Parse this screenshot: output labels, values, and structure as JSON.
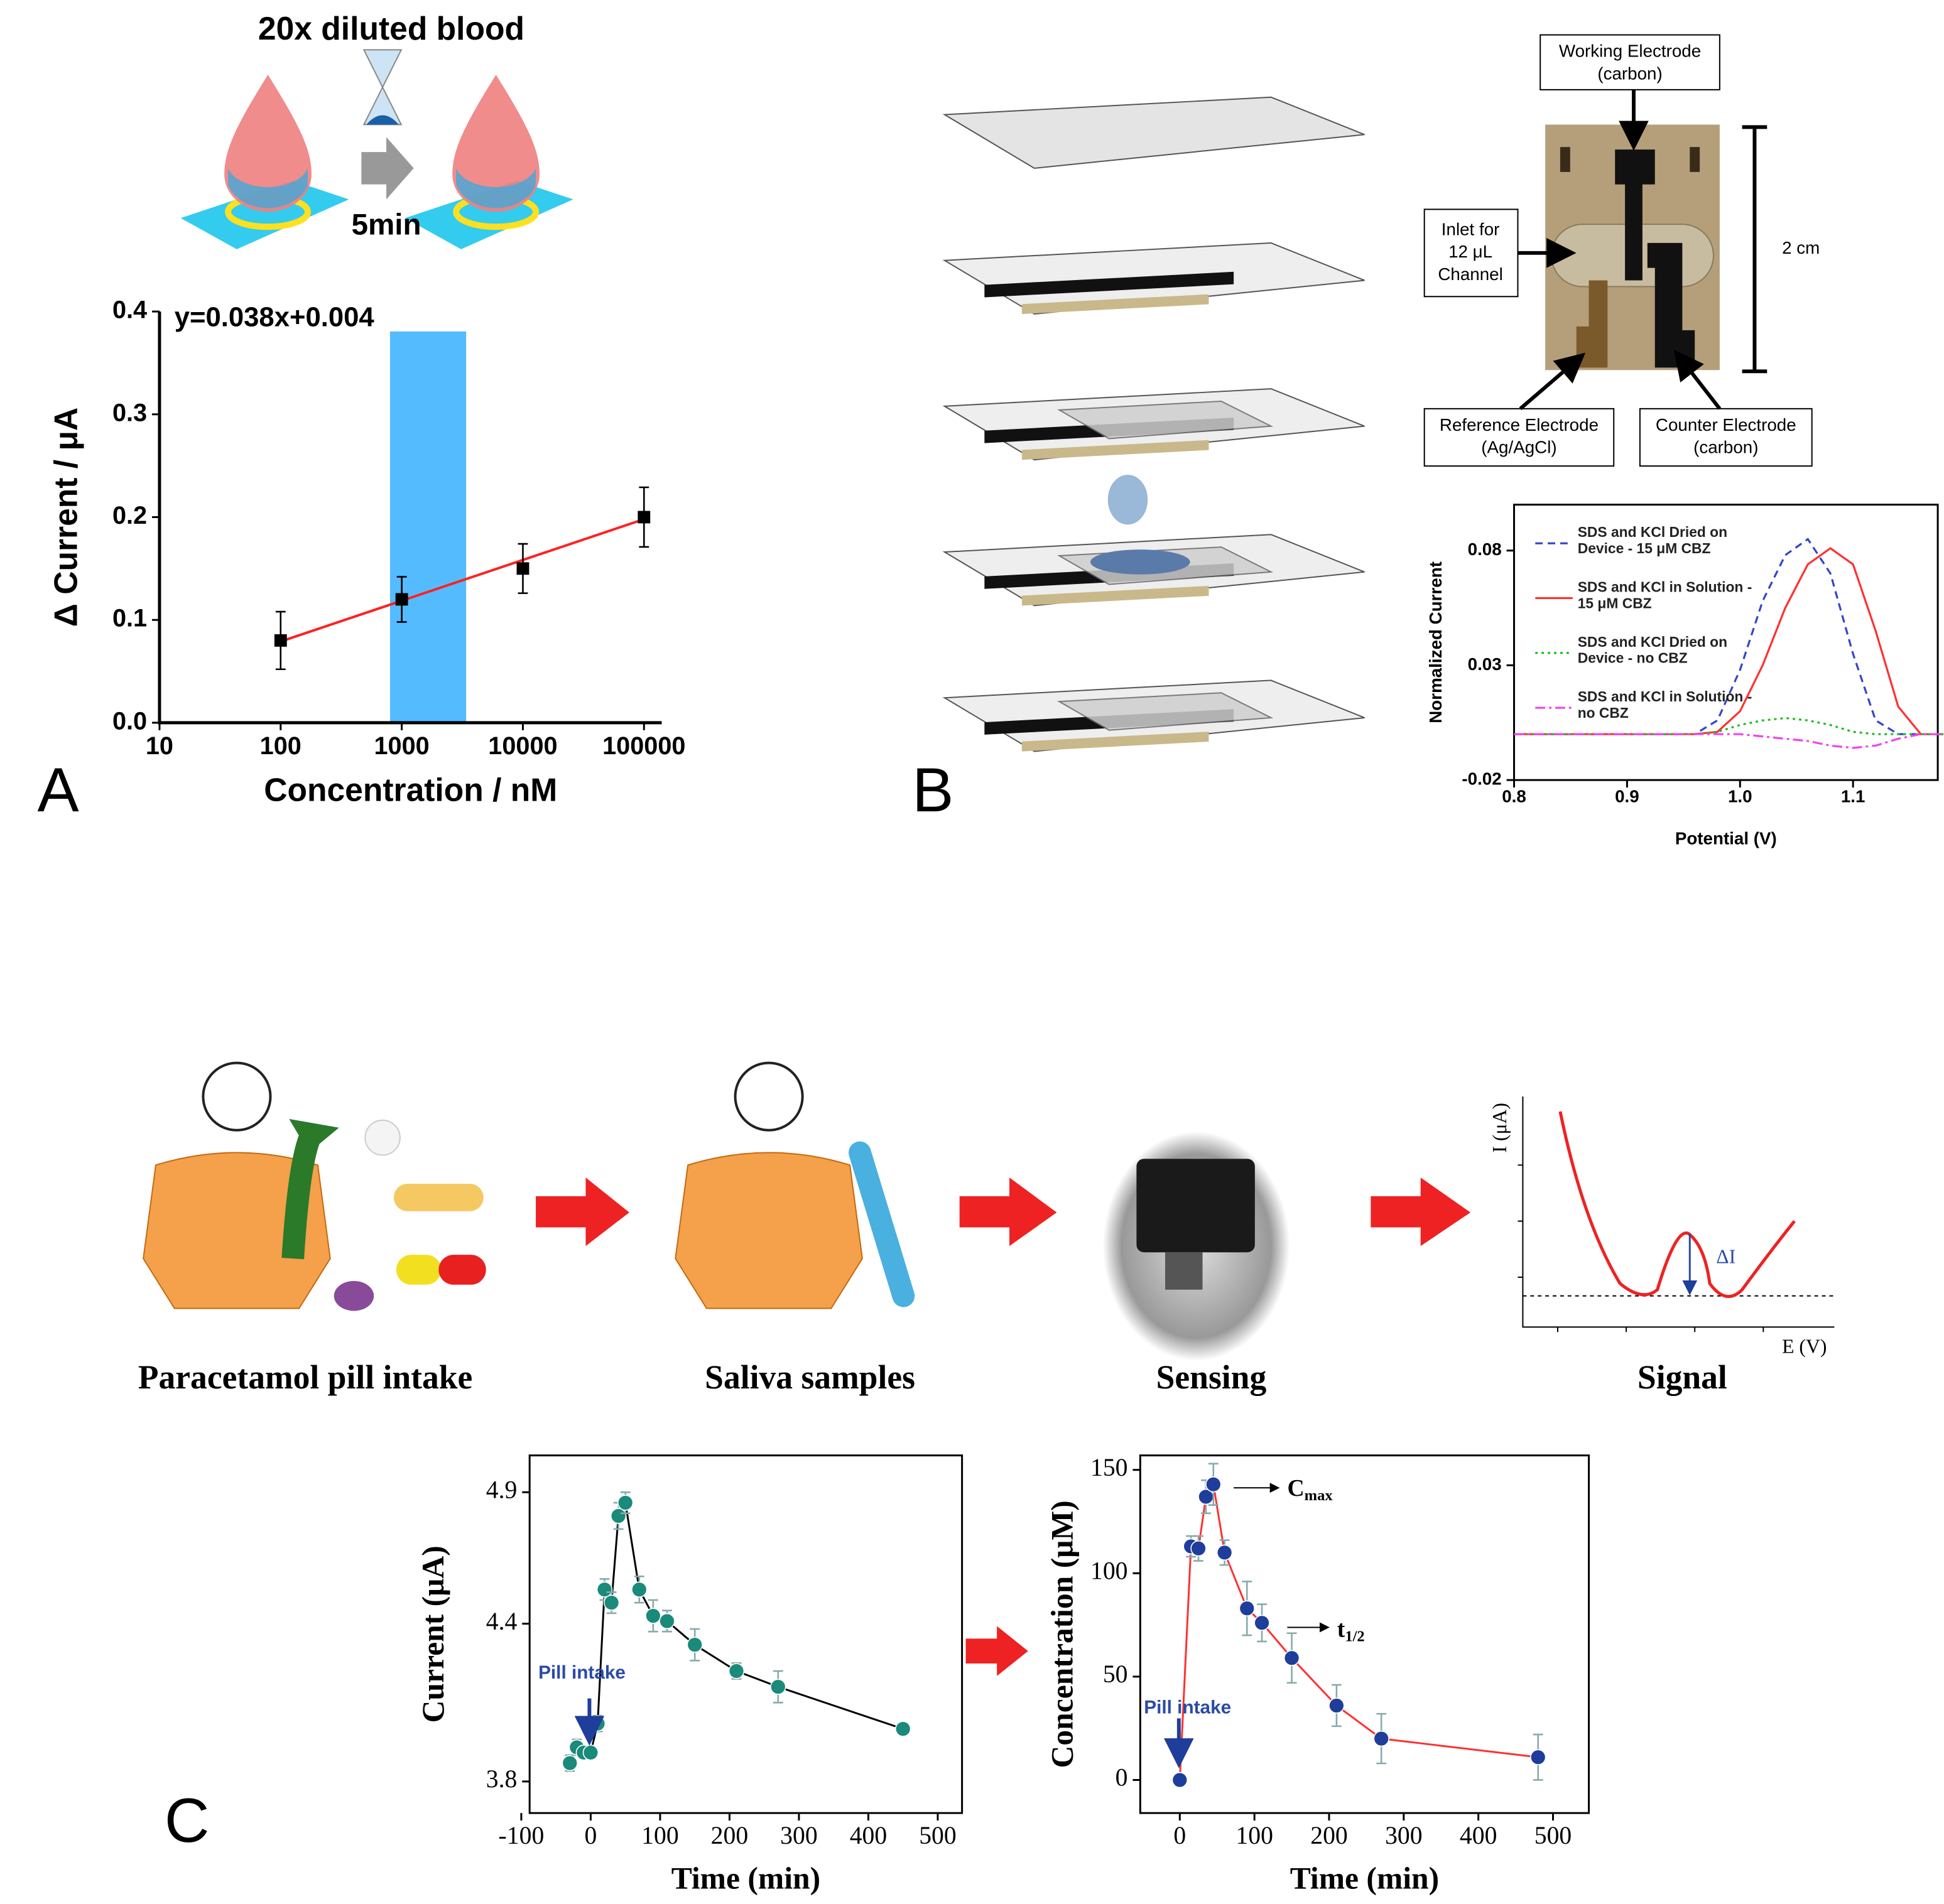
{
  "panel_labels": [
    "A",
    "B",
    "C"
  ],
  "panel_a": {
    "title": "20x diluted blood",
    "time": "5min"
  },
  "panel_b": {
    "photo_labels": {
      "working": [
        "Working Electrode",
        "(carbon)"
      ],
      "inlet": [
        "Inlet for",
        "12 μL",
        "Channel"
      ],
      "reference": [
        "Reference Electrode",
        "(Ag/AgCl)"
      ],
      "counter": [
        "Counter Electrode",
        "(carbon)"
      ],
      "scale": "2 cm"
    }
  },
  "panel_c": {
    "steps": [
      "Paracetamol pill intake",
      "Saliva samples",
      "Sensing",
      "Signal"
    ],
    "signal": {
      "ylabel": "I (μA)",
      "xlabel": "E (V)",
      "delta": "ΔI"
    }
  },
  "chart_data": [
    {
      "type": "scatter",
      "annotation": "y=0.038x+0.004",
      "xlabel": "Concentration / nM",
      "ylabel": "Δ Current / μA",
      "xlog": true,
      "x": [
        100,
        1000,
        10000,
        100000
      ],
      "series": [
        {
          "color": "#000000",
          "marker": "square",
          "linestyle": "none",
          "values": [
            0.08,
            0.12,
            0.15,
            0.2
          ],
          "errors": [
            0.028,
            0.022,
            0.024,
            0.029
          ]
        }
      ],
      "fit": {
        "color": "#ff2020",
        "x": [
          100,
          100000
        ],
        "values": [
          0.079,
          0.198
        ]
      },
      "highlight": {
        "x": [
          800,
          3400
        ],
        "color": "#55bbff"
      },
      "xlim": [
        10,
        140000
      ],
      "ylim": [
        0,
        0.4
      ],
      "xticks": [
        10,
        100,
        1000,
        10000,
        100000
      ],
      "yticks": [
        {
          "value": 0,
          "label": "0.0"
        },
        0.1,
        0.2,
        0.3,
        0.4
      ]
    },
    {
      "type": "line",
      "xlabel": "Potential (V)",
      "ylabel": "Normalized Current",
      "x": [
        0.8,
        0.9,
        0.96,
        0.98,
        1.0,
        1.02,
        1.04,
        1.06,
        1.08,
        1.1,
        1.12,
        1.14,
        1.16,
        1.18
      ],
      "series": [
        {
          "name": "SDS and KCl Dried on Device - 15 μM CBZ",
          "color": "#3344cc",
          "linestyle": "dashed",
          "values": [
            0,
            0,
            0,
            0.006,
            0.028,
            0.058,
            0.078,
            0.085,
            0.07,
            0.035,
            0.006,
            0,
            0,
            0
          ]
        },
        {
          "name": "SDS and KCl in Solution - 15 μM CBZ",
          "color": "#ff3030",
          "linestyle": "solid",
          "values": [
            0,
            0,
            0,
            0.001,
            0.01,
            0.03,
            0.055,
            0.074,
            0.081,
            0.074,
            0.045,
            0.012,
            0,
            0
          ]
        },
        {
          "name": "SDS and KCl Dried on Device - no CBZ",
          "color": "#22bb22",
          "linestyle": "dotted",
          "values": [
            0,
            0,
            0,
            0.001,
            0.004,
            0.006,
            0.007,
            0.006,
            0.004,
            0.001,
            0,
            0,
            0,
            0
          ]
        },
        {
          "name": "SDS and KCl in Solution - no CBZ",
          "color": "#ee44ee",
          "linestyle": "dashdot",
          "values": [
            0,
            0,
            0,
            0,
            0,
            -0.001,
            -0.002,
            -0.003,
            -0.005,
            -0.006,
            -0.005,
            -0.002,
            0,
            0
          ]
        }
      ],
      "xlim": [
        0.8,
        1.175
      ],
      "ylim": [
        -0.02,
        0.1
      ],
      "xticks": [
        0.8,
        0.9,
        {
          "value": 1.0,
          "label": "1.0"
        },
        1.1
      ],
      "yticks": [
        -0.02,
        0.03,
        0.08
      ]
    },
    {
      "type": "line",
      "xlabel": "Time (min)",
      "ylabel": "Current (μA)",
      "annotations": [
        {
          "text": "Pill intake"
        }
      ],
      "x": [
        -30,
        -20,
        -10,
        0,
        10,
        20,
        30,
        40,
        50,
        70,
        90,
        110,
        150,
        210,
        270,
        450
      ],
      "series": [
        {
          "color": "#1a8a7a",
          "line_color": "#000000",
          "marker": "circle",
          "linestyle": "solid",
          "values": [
            3.87,
            3.93,
            3.91,
            3.91,
            4.02,
            4.53,
            4.48,
            4.81,
            4.86,
            4.53,
            4.43,
            4.41,
            4.32,
            4.22,
            4.16,
            4.0
          ],
          "errors": [
            0.03,
            0.03,
            0.02,
            0.02,
            0.03,
            0.04,
            0.04,
            0.05,
            0.04,
            0.05,
            0.06,
            0.04,
            0.06,
            0.03,
            0.06,
            0.01
          ]
        }
      ],
      "xlim": [
        -88,
        535
      ],
      "ylim": [
        3.68,
        5.04
      ],
      "xticks": [
        -100,
        0,
        100,
        200,
        300,
        400,
        500
      ],
      "yticks": [
        3.8,
        4.4,
        4.9
      ]
    },
    {
      "type": "line",
      "xlabel": "Time (min)",
      "ylabel": "Concentration (μM)",
      "annotations": [
        {
          "text": "C",
          "sub": "max"
        },
        {
          "text": "t",
          "sub": "1/2"
        },
        {
          "text": "Pill intake"
        }
      ],
      "x": [
        0,
        15,
        25,
        35,
        45,
        60,
        90,
        110,
        150,
        210,
        270,
        480
      ],
      "series": [
        {
          "color": "#1f3d9a",
          "line_color": "#ff3030",
          "marker": "circle",
          "linestyle": "solid",
          "values": [
            0,
            113,
            112,
            137,
            143,
            110,
            83,
            76,
            59,
            36,
            20,
            11
          ],
          "errors": [
            2,
            5,
            6,
            8,
            10,
            6,
            13,
            9,
            12,
            10,
            12,
            11
          ]
        }
      ],
      "xlim": [
        -53,
        548
      ],
      "ylim": [
        -16,
        157
      ],
      "xticks": [
        0,
        100,
        200,
        300,
        400,
        500
      ],
      "yticks": [
        0,
        50,
        100,
        150
      ]
    }
  ]
}
